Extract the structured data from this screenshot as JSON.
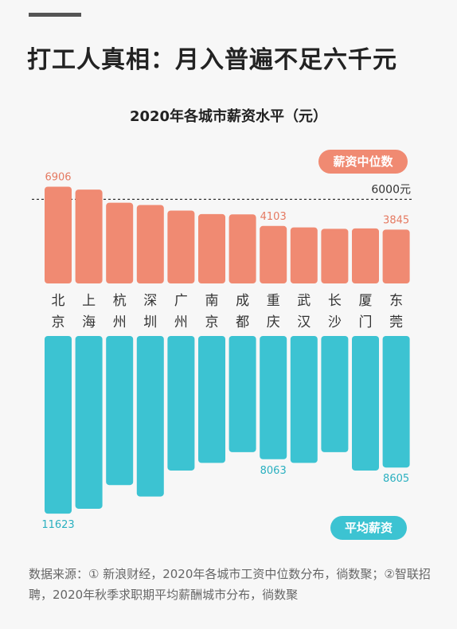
{
  "headline": "打工人真相：月入普遍不足六千元",
  "chart_data": {
    "type": "bar",
    "title": "2020年各城市薪资水平（元）",
    "categories": [
      "北京",
      "上海",
      "杭州",
      "深圳",
      "广州",
      "南京",
      "成都",
      "重庆",
      "武汉",
      "长沙",
      "厦门",
      "东莞"
    ],
    "category_labels": [
      [
        "北",
        "京"
      ],
      [
        "上",
        "海"
      ],
      [
        "杭",
        "州"
      ],
      [
        "深",
        "圳"
      ],
      [
        "广",
        "州"
      ],
      [
        "南",
        "京"
      ],
      [
        "成",
        "都"
      ],
      [
        "重",
        "庆"
      ],
      [
        "武",
        "汉"
      ],
      [
        "长",
        "沙"
      ],
      [
        "厦",
        "门"
      ],
      [
        "东",
        "莞"
      ]
    ],
    "series": [
      {
        "name": "薪资中位数",
        "color": "#f08a72",
        "values": [
          6906,
          6700,
          5760,
          5600,
          5200,
          4950,
          4930,
          4103,
          4000,
          3900,
          3930,
          3845
        ],
        "data_labels": {
          "0": "6906",
          "7": "4103",
          "11": "3845"
        }
      },
      {
        "name": "平均薪资",
        "color": "#3cc3d2",
        "values": [
          11623,
          11300,
          9750,
          10500,
          8800,
          8300,
          7600,
          8063,
          8300,
          7600,
          8800,
          8605
        ],
        "data_labels": {
          "0": "11623",
          "7": "8063",
          "11": "8605"
        }
      }
    ],
    "reference_line": {
      "value": 6000,
      "label": "6000元"
    }
  },
  "source": "数据来源：① 新浪财经，2020年各城市工资中位数分布，徜数聚；②智联招聘，2020年秋季求职期平均薪酬城市分布，徜数聚"
}
